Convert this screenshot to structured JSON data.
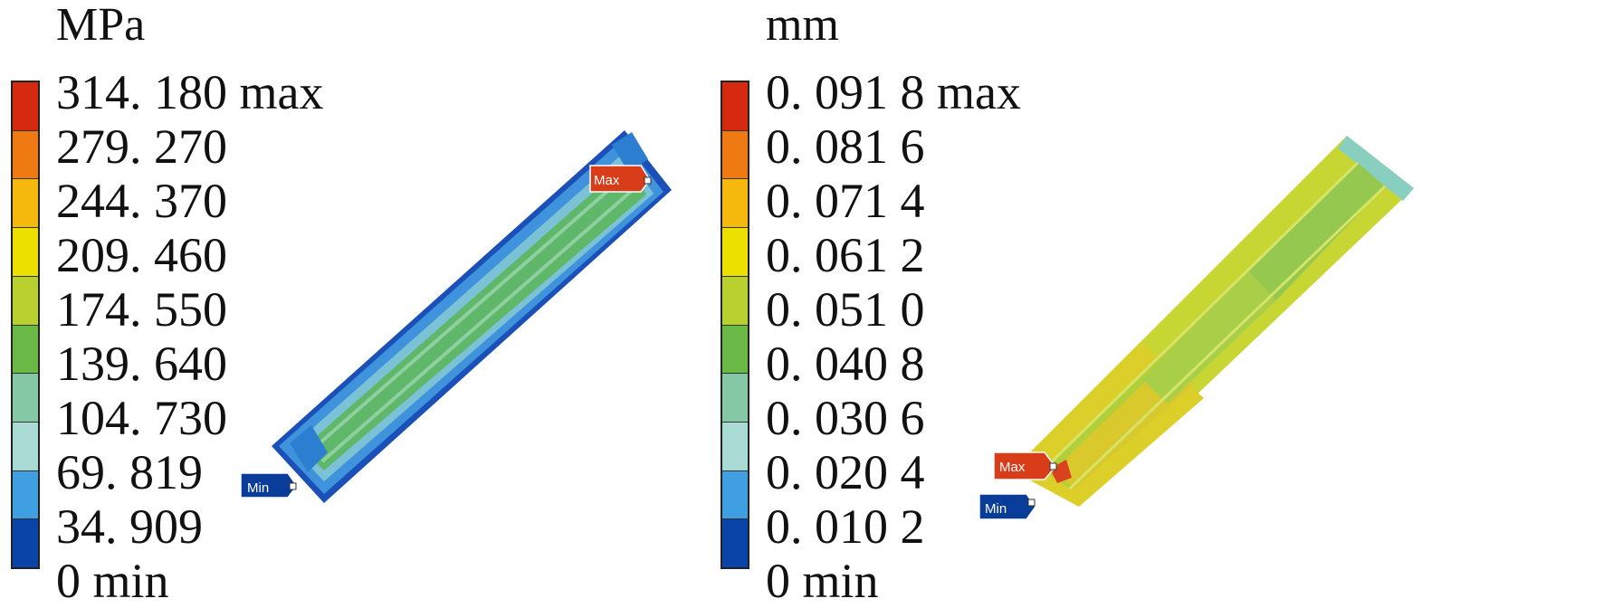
{
  "panels": [
    {
      "unit": "MPa",
      "legend_labels": [
        "314. 180 max",
        "279. 270",
        "244. 370",
        "209. 460",
        "174. 550",
        "139. 640",
        "104. 730",
        "69. 819",
        "34. 909",
        "0 min"
      ],
      "marker_max": "Max",
      "marker_min": "Min"
    },
    {
      "unit": "mm",
      "legend_labels": [
        "0. 091 8 max",
        "0. 081 6",
        "0. 071 4",
        "0. 061 2",
        "0. 051 0",
        "0. 040 8",
        "0. 030 6",
        "0. 020 4",
        "0. 010 2",
        "0 min"
      ],
      "marker_max": "Max",
      "marker_min": "Min"
    }
  ],
  "colorbar_colors": [
    "#d42a10",
    "#f07a12",
    "#f5b80c",
    "#ece000",
    "#b9d12e",
    "#6ab845",
    "#84c8a6",
    "#a9dbd4",
    "#3f9fe0",
    "#0a44a8"
  ]
}
